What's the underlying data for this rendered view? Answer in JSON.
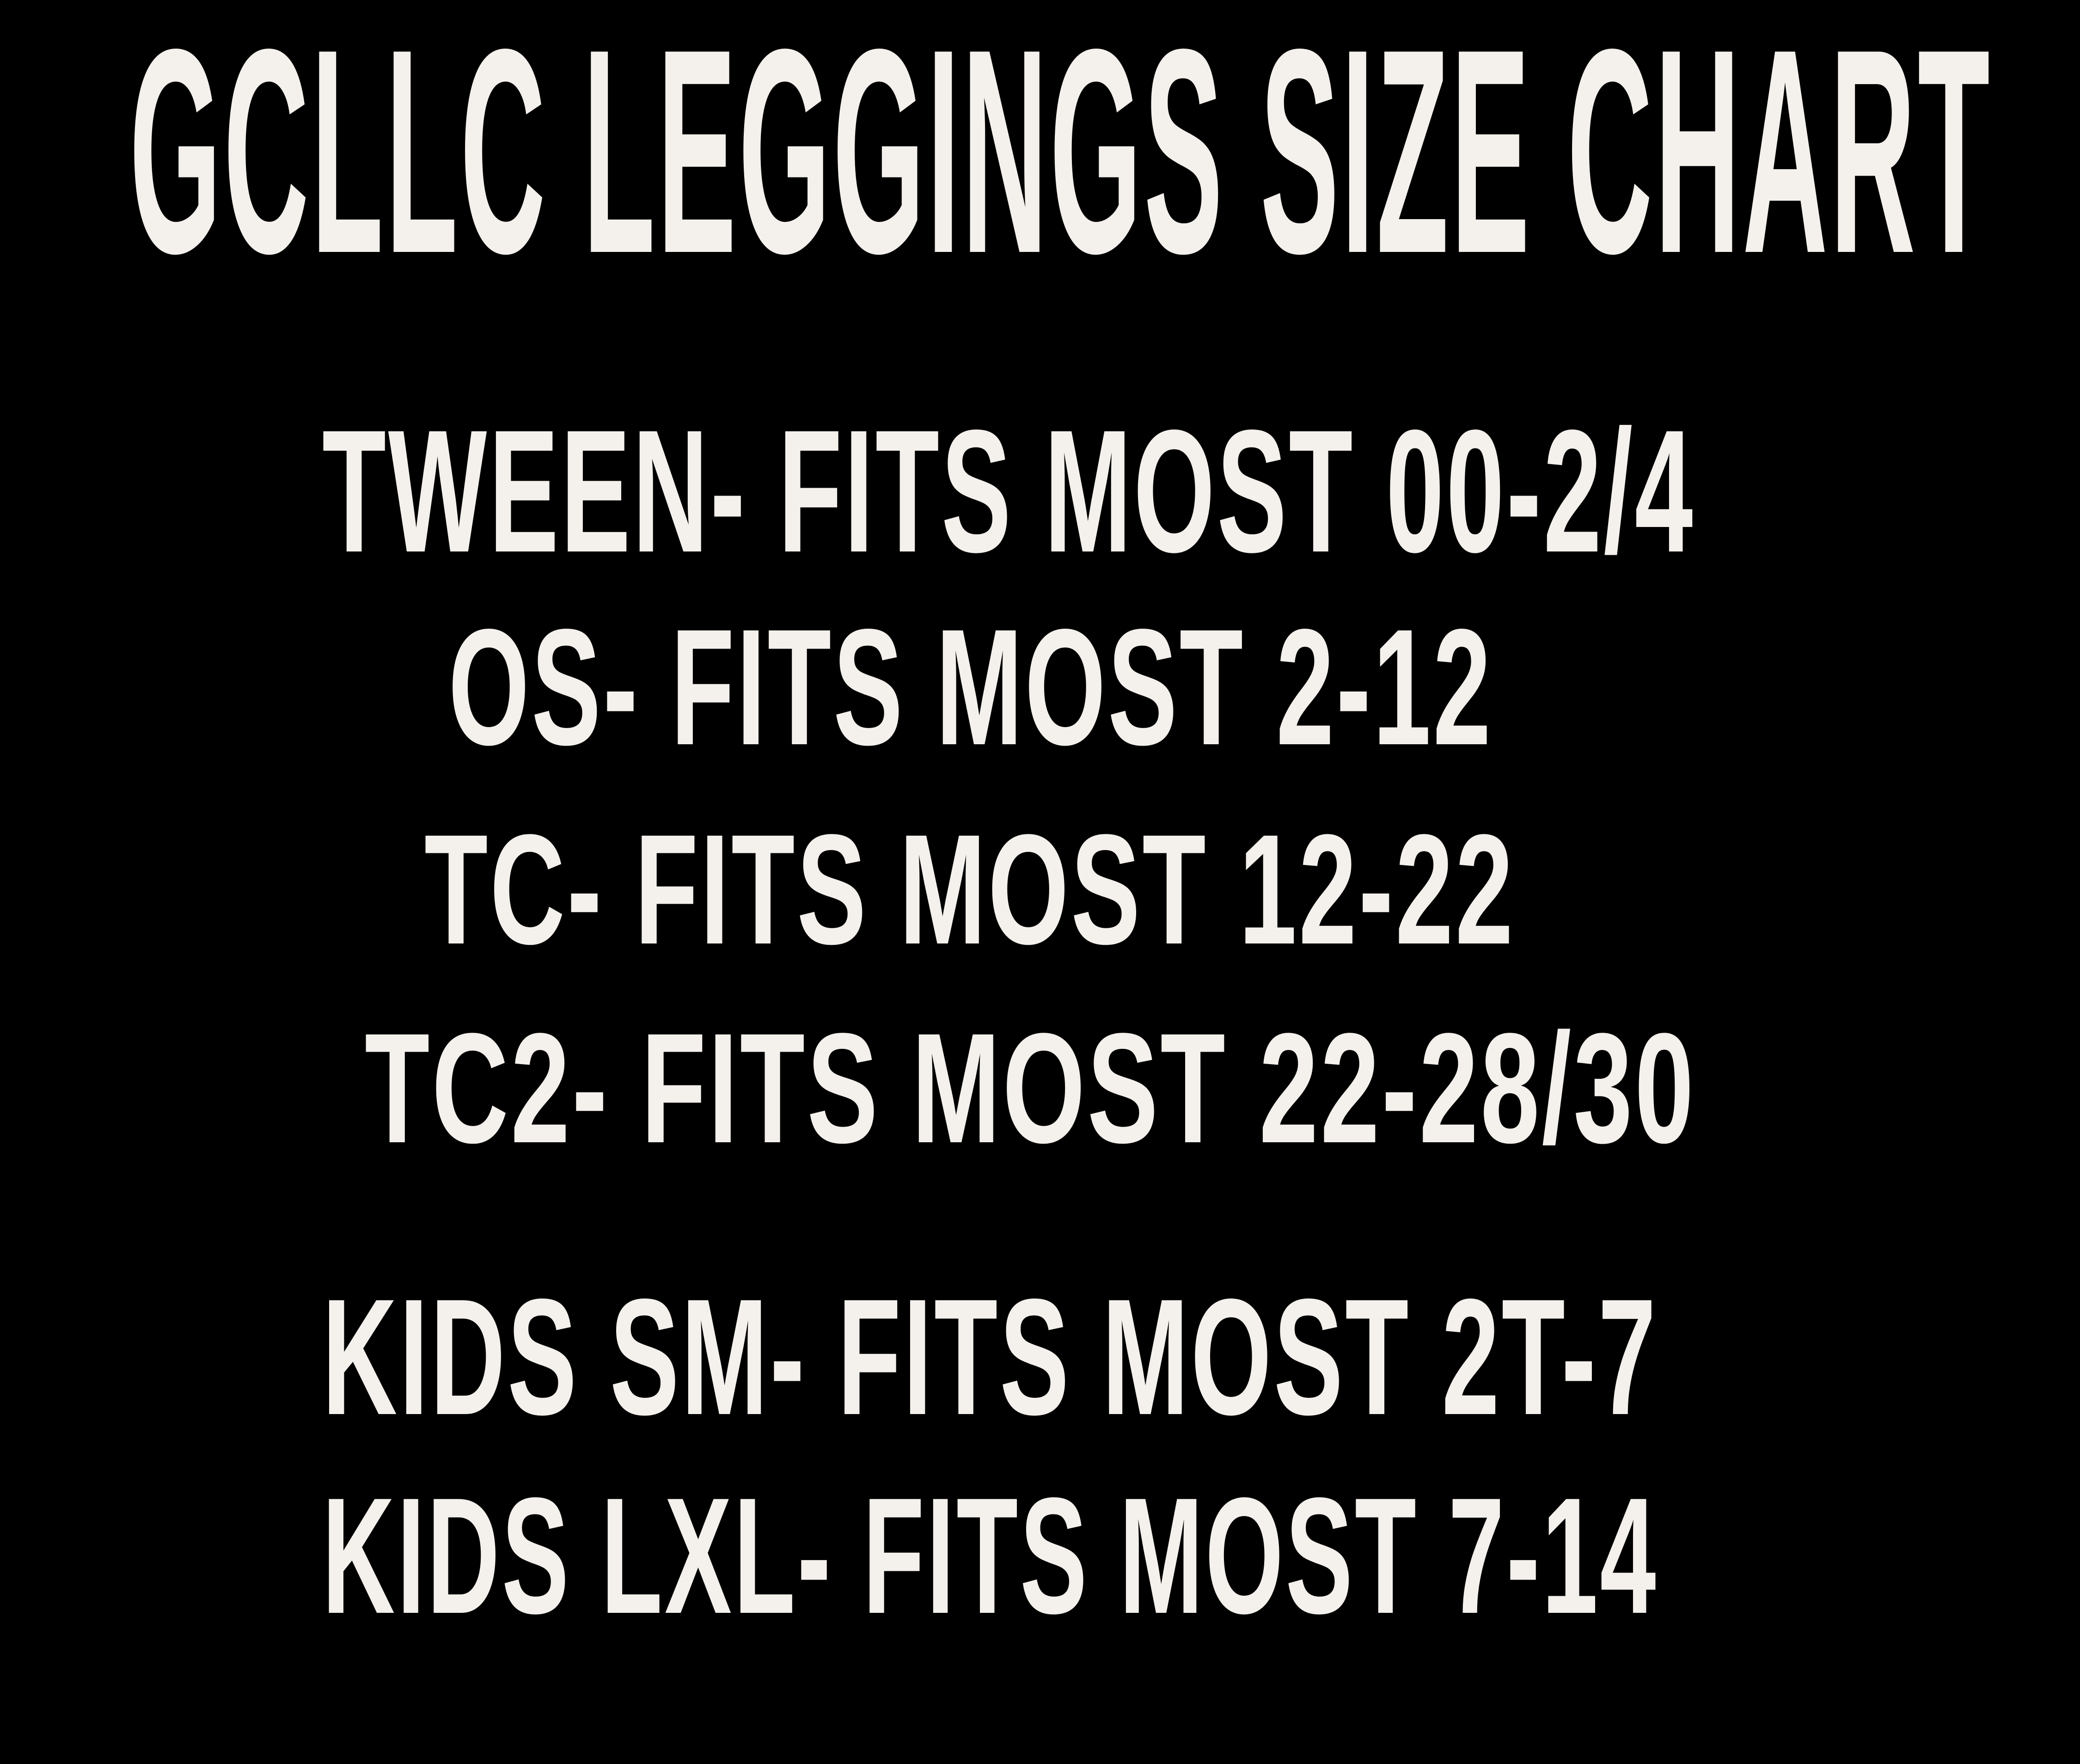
{
  "title": "GCLLC LEGGINGS SIZE CHART",
  "colors": {
    "background": "#000000",
    "text": "#f4f1ec"
  },
  "sizes": [
    "TWEEN- FITS MOST 00-2/4",
    "OS- FITS MOST 2-12",
    "TC- FITS MOST 12-22",
    "TC2- FITS MOST 22-28/30",
    "KIDS SM- FITS MOST 2T-7",
    "KIDS LXL- FITS MOST 7-14"
  ]
}
